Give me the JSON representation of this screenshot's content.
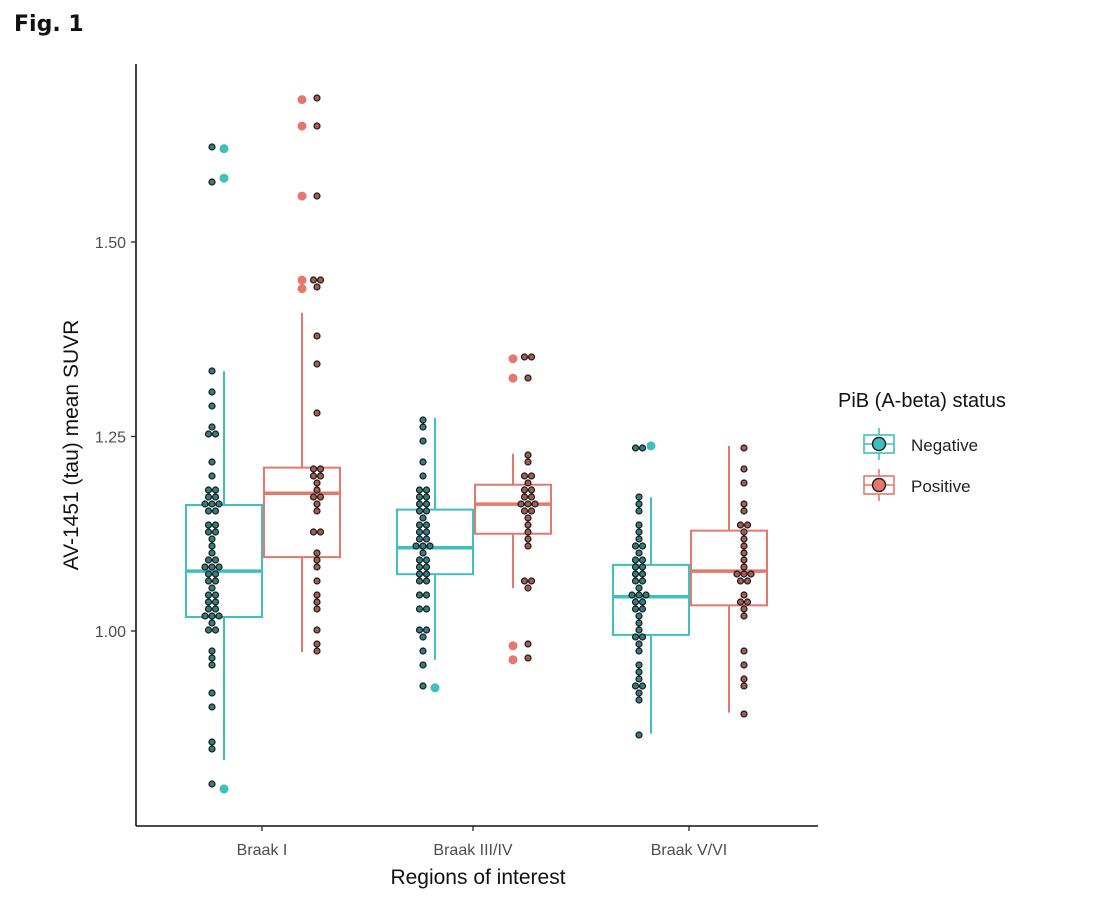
{
  "figure_label": "Fig. 1",
  "chart_data": {
    "type": "boxplot with dotplot",
    "title": "",
    "xlabel": "Regions of interest",
    "ylabel": "AV-1451 (tau) mean SUVR",
    "categories": [
      "Braak I",
      "Braak III/IV",
      "Braak V/VI"
    ],
    "yticks": [
      "1.00",
      "1.25",
      "1.50"
    ],
    "ylim": [
      0.78,
      1.75
    ],
    "grid": false,
    "legend": {
      "title": "PiB (A-beta) status",
      "placement": "right",
      "entries": [
        "Negative",
        "Positive"
      ]
    },
    "colors": {
      "Negative": "#3fbfc0",
      "Positive": "#e5786d",
      "Negative_dot": "#2f7f80",
      "Positive_dot": "#a65a52",
      "dot_stroke": "#1a1a1a"
    },
    "series": [
      {
        "name": "Negative",
        "boxes": [
          {
            "q1": 1.018,
            "median": 1.077,
            "q3": 1.162,
            "whisker_low": 0.834,
            "whisker_high": 1.334,
            "outliers": [
              1.62,
              1.582,
              0.797
            ]
          },
          {
            "q1": 1.073,
            "median": 1.107,
            "q3": 1.156,
            "whisker_low": 0.963,
            "whisker_high": 1.274,
            "outliers": [
              0.927
            ]
          },
          {
            "q1": 0.995,
            "median": 1.044,
            "q3": 1.085,
            "whisker_low": 0.868,
            "whisker_high": 1.172,
            "outliers": [
              1.238
            ]
          }
        ],
        "points": [
          [
            1.62,
            1.58,
            1.335,
            1.31,
            1.29,
            1.26,
            1.255,
            1.255,
            1.22,
            1.2,
            1.185,
            1.18,
            1.175,
            1.17,
            1.165,
            1.16,
            1.16,
            1.155,
            1.15,
            1.14,
            1.135,
            1.13,
            1.125,
            1.12,
            1.11,
            1.1,
            1.095,
            1.09,
            1.085,
            1.08,
            1.078,
            1.075,
            1.07,
            1.065,
            1.06,
            1.055,
            1.05,
            1.045,
            1.04,
            1.035,
            1.03,
            1.025,
            1.02,
            1.02,
            1.015,
            1.01,
            1.005,
            1.0,
            0.97,
            0.965,
            0.955,
            0.92,
            0.905,
            0.86,
            0.85,
            0.8
          ],
          [
            1.275,
            1.265,
            1.24,
            1.22,
            1.2,
            1.185,
            1.18,
            1.175,
            1.17,
            1.165,
            1.16,
            1.155,
            1.15,
            1.145,
            1.14,
            1.135,
            1.13,
            1.125,
            1.12,
            1.115,
            1.11,
            1.107,
            1.105,
            1.1,
            1.095,
            1.09,
            1.085,
            1.08,
            1.075,
            1.07,
            1.065,
            1.06,
            1.05,
            1.045,
            1.03,
            1.025,
            1.005,
            1.0,
            0.99,
            0.97,
            0.96,
            0.927
          ],
          [
            1.238,
            1.238,
            1.175,
            1.16,
            1.15,
            1.14,
            1.13,
            1.12,
            1.11,
            1.105,
            1.1,
            1.095,
            1.09,
            1.085,
            1.08,
            1.075,
            1.07,
            1.065,
            1.06,
            1.055,
            1.05,
            1.045,
            1.042,
            1.04,
            1.035,
            1.03,
            1.025,
            1.02,
            1.01,
            1.0,
            0.995,
            0.99,
            0.98,
            0.97,
            0.96,
            0.95,
            0.94,
            0.93,
            0.925,
            0.92,
            0.91,
            0.868
          ]
        ]
      },
      {
        "name": "Positive",
        "boxes": [
          {
            "q1": 1.095,
            "median": 1.177,
            "q3": 1.21,
            "whisker_low": 0.973,
            "whisker_high": 1.409,
            "outliers": [
              1.683,
              1.649,
              1.559,
              1.451,
              1.44
            ]
          },
          {
            "q1": 1.125,
            "median": 1.163,
            "q3": 1.188,
            "whisker_low": 1.055,
            "whisker_high": 1.228,
            "outliers": [
              1.35,
              1.325,
              0.981,
              0.963
            ]
          },
          {
            "q1": 1.033,
            "median": 1.077,
            "q3": 1.129,
            "whisker_low": 0.895,
            "whisker_high": 1.238,
            "outliers": []
          }
        ],
        "points": [
          [
            1.683,
            1.649,
            1.559,
            1.451,
            1.451,
            1.44,
            1.375,
            1.345,
            1.28,
            1.21,
            1.205,
            1.2,
            1.195,
            1.19,
            1.18,
            1.175,
            1.17,
            1.16,
            1.15,
            1.13,
            1.125,
            1.1,
            1.09,
            1.08,
            1.06,
            1.05,
            1.035,
            1.03,
            1.0,
            0.985,
            0.975
          ],
          [
            1.35,
            1.35,
            1.325,
            1.23,
            1.22,
            1.2,
            1.195,
            1.19,
            1.185,
            1.18,
            1.175,
            1.17,
            1.165,
            1.163,
            1.16,
            1.155,
            1.15,
            1.145,
            1.14,
            1.13,
            1.12,
            1.11,
            1.065,
            1.06,
            1.055,
            0.981,
            0.963
          ],
          [
            1.238,
            1.21,
            1.19,
            1.16,
            1.15,
            1.14,
            1.135,
            1.13,
            1.12,
            1.11,
            1.1,
            1.09,
            1.08,
            1.077,
            1.075,
            1.07,
            1.065,
            1.06,
            1.05,
            1.04,
            1.035,
            1.03,
            1.02,
            0.97,
            0.96,
            0.94,
            0.93,
            0.895
          ]
        ]
      }
    ]
  }
}
